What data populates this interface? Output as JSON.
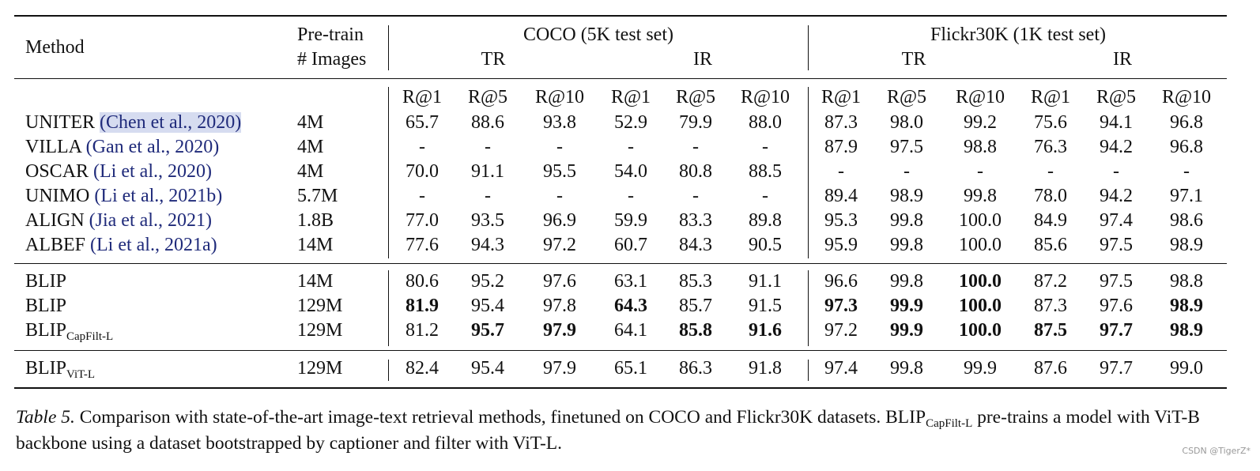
{
  "table": {
    "header": {
      "method": "Method",
      "pretrain": [
        "Pre-train",
        "# Images"
      ],
      "groups": [
        {
          "title": "COCO (5K test set)",
          "subgroups": [
            "TR",
            "IR"
          ]
        },
        {
          "title": "Flickr30K (1K test set)",
          "subgroups": [
            "TR",
            "IR"
          ]
        }
      ],
      "metrics": [
        "R@1",
        "R@5",
        "R@10",
        "R@1",
        "R@5",
        "R@10",
        "R@1",
        "R@5",
        "R@10",
        "R@1",
        "R@5",
        "R@10"
      ]
    },
    "sections": [
      {
        "rows": [
          {
            "method": "UNITER",
            "citation": "(Chen et al., 2020)",
            "images": "4M",
            "values": [
              "65.7",
              "88.6",
              "93.8",
              "52.9",
              "79.9",
              "88.0",
              "87.3",
              "98.0",
              "99.2",
              "75.6",
              "94.1",
              "96.8"
            ]
          },
          {
            "method": "VILLA",
            "citation": "(Gan et al., 2020)",
            "images": "4M",
            "values": [
              "-",
              "-",
              "-",
              "-",
              "-",
              "-",
              "87.9",
              "97.5",
              "98.8",
              "76.3",
              "94.2",
              "96.8"
            ]
          },
          {
            "method": "OSCAR",
            "citation": "(Li et al., 2020)",
            "images": "4M",
            "values": [
              "70.0",
              "91.1",
              "95.5",
              "54.0",
              "80.8",
              "88.5",
              "-",
              "-",
              "-",
              "-",
              "-",
              "-"
            ]
          },
          {
            "method": "UNIMO",
            "citation": "(Li et al., 2021b)",
            "images": "5.7M",
            "values": [
              "-",
              "-",
              "-",
              "-",
              "-",
              "-",
              "89.4",
              "98.9",
              "99.8",
              "78.0",
              "94.2",
              "97.1"
            ]
          },
          {
            "method": "ALIGN",
            "citation": "(Jia et al., 2021)",
            "images": "1.8B",
            "values": [
              "77.0",
              "93.5",
              "96.9",
              "59.9",
              "83.3",
              "89.8",
              "95.3",
              "99.8",
              "100.0",
              "84.9",
              "97.4",
              "98.6"
            ]
          },
          {
            "method": "ALBEF",
            "citation": "(Li et al., 2021a)",
            "images": "14M",
            "values": [
              "77.6",
              "94.3",
              "97.2",
              "60.7",
              "84.3",
              "90.5",
              "95.9",
              "99.8",
              "100.0",
              "85.6",
              "97.5",
              "98.9"
            ]
          }
        ]
      },
      {
        "rows": [
          {
            "method": "BLIP",
            "images": "14M",
            "values": [
              "80.6",
              "95.2",
              "97.6",
              "63.1",
              "85.3",
              "91.1",
              "96.6",
              "99.8",
              "100.0",
              "87.2",
              "97.5",
              "98.8"
            ],
            "bold": [
              8
            ]
          },
          {
            "method": "BLIP",
            "images": "129M",
            "values": [
              "81.9",
              "95.4",
              "97.8",
              "64.3",
              "85.7",
              "91.5",
              "97.3",
              "99.9",
              "100.0",
              "87.3",
              "97.6",
              "98.9"
            ],
            "bold": [
              0,
              3,
              6,
              7,
              8,
              11
            ]
          },
          {
            "method": "BLIP",
            "method_sub": "CapFilt-L",
            "images": "129M",
            "values": [
              "81.2",
              "95.7",
              "97.9",
              "64.1",
              "85.8",
              "91.6",
              "97.2",
              "99.9",
              "100.0",
              "87.5",
              "97.7",
              "98.9"
            ],
            "bold": [
              1,
              2,
              4,
              5,
              7,
              8,
              9,
              10,
              11
            ]
          }
        ]
      },
      {
        "rows": [
          {
            "method": "BLIP",
            "method_sub": "ViT-L",
            "images": "129M",
            "values": [
              "82.4",
              "95.4",
              "97.9",
              "65.1",
              "86.3",
              "91.8",
              "97.4",
              "99.8",
              "99.9",
              "87.6",
              "97.7",
              "99.0"
            ]
          }
        ]
      }
    ]
  },
  "caption": {
    "label": "Table 5.",
    "text_before": "Comparison with state-of-the-art image-text retrieval methods, finetuned on COCO and Flickr30K datasets. BLIP",
    "sub": "CapFilt-L",
    "text_after": "pre-trains a model with ViT-B backbone using a dataset bootstrapped by captioner and filter with ViT-L."
  },
  "watermark": "CSDN @TigerZ*"
}
